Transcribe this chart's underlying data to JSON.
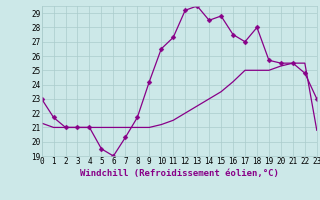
{
  "xlabel": "Windchill (Refroidissement éolien,°C)",
  "bg_color": "#cce8e8",
  "grid_color": "#aacccc",
  "line_color": "#880088",
  "x_line1": [
    0,
    1,
    2,
    3,
    4,
    5,
    6,
    7,
    8,
    9,
    10,
    11,
    12,
    13,
    14,
    15,
    16,
    17,
    18,
    19,
    20,
    21,
    22,
    23
  ],
  "y_line1": [
    23.0,
    21.7,
    21.0,
    21.0,
    21.0,
    19.5,
    19.0,
    20.3,
    21.7,
    24.2,
    26.5,
    27.3,
    29.2,
    29.5,
    28.5,
    28.8,
    27.5,
    27.0,
    28.0,
    25.7,
    25.5,
    25.5,
    24.8,
    23.0
  ],
  "x_line2": [
    0,
    1,
    2,
    3,
    4,
    5,
    6,
    7,
    8,
    9,
    10,
    11,
    12,
    13,
    14,
    15,
    16,
    17,
    18,
    19,
    20,
    21,
    22,
    23
  ],
  "y_line2": [
    21.3,
    21.0,
    21.0,
    21.0,
    21.0,
    21.0,
    21.0,
    21.0,
    21.0,
    21.0,
    21.2,
    21.5,
    22.0,
    22.5,
    23.0,
    23.5,
    24.2,
    25.0,
    25.0,
    25.0,
    25.3,
    25.5,
    25.5,
    20.8
  ],
  "xlim": [
    0,
    23
  ],
  "ylim": [
    19,
    29.5
  ],
  "yticks": [
    19,
    20,
    21,
    22,
    23,
    24,
    25,
    26,
    27,
    28,
    29
  ],
  "xticks": [
    0,
    1,
    2,
    3,
    4,
    5,
    6,
    7,
    8,
    9,
    10,
    11,
    12,
    13,
    14,
    15,
    16,
    17,
    18,
    19,
    20,
    21,
    22,
    23
  ],
  "markersize": 2.5,
  "linewidth": 0.9,
  "tick_fontsize": 5.5,
  "label_fontsize": 6.5
}
